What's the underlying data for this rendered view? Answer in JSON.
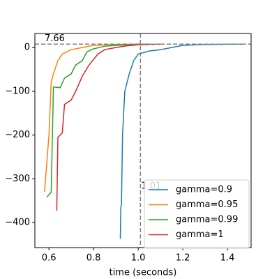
{
  "chart_data": {
    "type": "line",
    "xlabel": "time (seconds)",
    "xlim": [
      0.537,
      1.506
    ],
    "ylim": [
      -457,
      32
    ],
    "xticks": [
      0.6,
      0.8,
      {
        "value": 1.0,
        "label": "1.0"
      },
      1.2,
      1.4
    ],
    "yticks": [
      0,
      {
        "value": -100,
        "label": "−100"
      },
      {
        "value": -200,
        "label": "−200"
      },
      {
        "value": -300,
        "label": "−300"
      },
      {
        "value": -400,
        "label": "−400"
      }
    ],
    "hline": {
      "value": 7.66,
      "label": "7.66"
    },
    "vline": {
      "value": 1.01,
      "label": "1.01"
    },
    "legend": "lower right",
    "series": [
      {
        "name": "gamma=0.9",
        "color": "#1f77b4",
        "x": [
          0.92,
          0.922,
          0.925,
          0.93,
          0.94,
          0.96,
          0.98,
          1.0,
          1.05,
          1.1,
          1.15,
          1.2,
          1.3,
          1.47
        ],
        "values": [
          -437,
          -365,
          -360,
          -200,
          -100,
          -60,
          -30,
          -15,
          -8,
          -5,
          0,
          5,
          7,
          7.66
        ]
      },
      {
        "name": "gamma=0.95",
        "color": "#ff7f0e",
        "x": [
          0.58,
          0.6,
          0.61,
          0.62,
          0.64,
          0.66,
          0.7,
          0.75,
          0.8,
          0.9,
          1.0,
          1.05
        ],
        "values": [
          -330,
          -200,
          -80,
          -60,
          -30,
          -15,
          -5,
          0,
          5,
          7,
          7.5,
          7.66
        ]
      },
      {
        "name": "gamma=0.99",
        "color": "#2ca02c",
        "x": [
          0.59,
          0.61,
          0.62,
          0.65,
          0.67,
          0.7,
          0.72,
          0.75,
          0.77,
          0.8,
          0.85,
          0.9,
          1.0,
          1.05
        ],
        "values": [
          -342,
          -330,
          -90,
          -92,
          -70,
          -60,
          -40,
          -30,
          -10,
          -3,
          3,
          5,
          7,
          7.66
        ]
      },
      {
        "name": "gamma=1",
        "color": "#d62728",
        "x": [
          0.635,
          0.64,
          0.66,
          0.67,
          0.7,
          0.72,
          0.75,
          0.78,
          0.82,
          0.85,
          0.9,
          0.95,
          1.0,
          1.1
        ],
        "values": [
          -373,
          -205,
          -195,
          -130,
          -120,
          -100,
          -65,
          -40,
          -15,
          -5,
          0,
          4,
          6,
          7.66
        ]
      }
    ]
  }
}
